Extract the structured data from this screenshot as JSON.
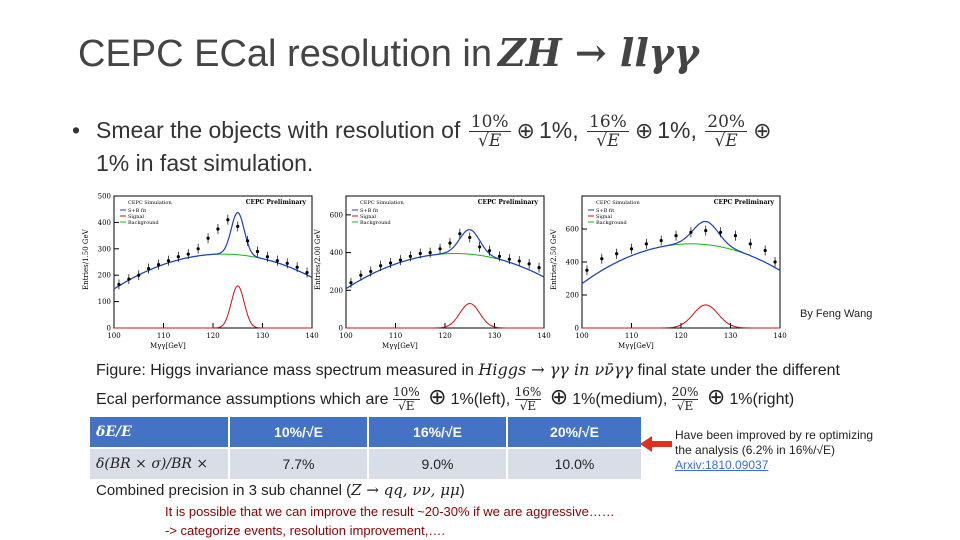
{
  "slide": {
    "title_text": "CEPC ECal resolution in",
    "title_math": "ZH → llγγ",
    "bullet_symbol": "•",
    "bullet_text": "Smear the objects with resolution of",
    "resolutions": [
      {
        "numerator": "10%",
        "denominator": "√E"
      },
      {
        "numerator": "16%",
        "denominator": "√E"
      },
      {
        "numerator": "20%",
        "denominator": "√E"
      }
    ],
    "oplus": "⊕",
    "constant_term": "1%,",
    "bullet_line2": "1% in fast simulation.",
    "credit": "By Feng Wang",
    "caption_line1_a": "Figure: Higgs invariance mass spectrum measured in",
    "caption_line1_math": "Higgs → γγ in νν̄γγ",
    "caption_line1_b": "final state under the different",
    "caption_line2_a": "Ecal performance assumptions which are",
    "caption_terms": [
      "1%(left),",
      "1%(medium),",
      "1%(right)"
    ],
    "combined_text": "Combined precision in 3 sub channel (",
    "combined_math": "Z → qq, νν, μμ",
    "combined_close": ")",
    "aggressive_line1": "It is possible that we can improve the result ~20-30% if we are aggressive……",
    "aggressive_line2": "-> categorize events, resolution improvement,…."
  },
  "table": {
    "header": [
      "δE/E",
      "10%/√E",
      "16%/√E",
      "20%/√E"
    ],
    "row_label": "δ(BR × σ)/BR ×",
    "row_values": [
      "7.7%",
      "9.0%",
      "10.0%"
    ]
  },
  "note": {
    "line1": "Have been improved by re optimizing",
    "line2": "the analysis (6.2% in 16%/√E)",
    "link": "Arxiv:1810.09037"
  },
  "chart_data": [
    {
      "type": "line",
      "title": "CEPC Preliminary",
      "tag": "CEPC Simulation",
      "legend": [
        "S+B fit",
        "Signal",
        "Background"
      ],
      "xlabel": "Mγγ[GeV]",
      "ylabel": "Entries/1.50 GeV",
      "xlim": [
        100,
        140
      ],
      "ylim": [
        0,
        500
      ],
      "xticks": [
        100,
        110,
        120,
        130,
        140
      ],
      "yticks": [
        0,
        100,
        200,
        300,
        400,
        500
      ],
      "x": [
        101,
        103,
        105,
        107,
        109,
        111,
        113,
        115,
        117,
        119,
        121,
        123,
        125,
        127,
        129,
        131,
        133,
        135,
        137,
        139
      ],
      "data": [
        165,
        185,
        200,
        225,
        240,
        255,
        270,
        280,
        300,
        340,
        375,
        410,
        385,
        330,
        290,
        270,
        255,
        245,
        230,
        210
      ],
      "signal_peak": 160,
      "signal_sigma": 1.3,
      "bkg_top": 280
    },
    {
      "type": "line",
      "title": "CEPC Preliminary",
      "tag": "CEPC Simulation",
      "legend": [
        "S+B fit",
        "Signal",
        "Background"
      ],
      "xlabel": "Mγγ[GeV]",
      "ylabel": "Entries/2.00 GeV",
      "xlim": [
        100,
        140
      ],
      "ylim": [
        0,
        700
      ],
      "xticks": [
        100,
        110,
        120,
        130,
        140
      ],
      "yticks": [
        0,
        200,
        400,
        600
      ],
      "x": [
        101,
        103,
        105,
        107,
        109,
        111,
        113,
        115,
        117,
        119,
        121,
        123,
        125,
        127,
        129,
        131,
        133,
        135,
        137,
        139
      ],
      "data": [
        240,
        280,
        300,
        330,
        345,
        360,
        380,
        395,
        400,
        420,
        450,
        500,
        480,
        430,
        410,
        380,
        365,
        355,
        340,
        320
      ],
      "signal_peak": 130,
      "signal_sigma": 2.0,
      "bkg_top": 395
    },
    {
      "type": "line",
      "title": "CEPC Preliminary",
      "tag": "CEPC Simulation",
      "legend": [
        "S+B fit",
        "Signal",
        "Background"
      ],
      "xlabel": "Mγγ[GeV]",
      "ylabel": "Entries/2.50 GeV",
      "xlim": [
        100,
        140
      ],
      "ylim": [
        0,
        800
      ],
      "xticks": [
        100,
        110,
        120,
        130,
        140
      ],
      "yticks": [
        0,
        200,
        400,
        600
      ],
      "x": [
        101,
        104,
        107,
        110,
        113,
        116,
        119,
        122,
        125,
        128,
        131,
        134,
        137,
        139
      ],
      "data": [
        350,
        420,
        450,
        480,
        510,
        530,
        560,
        580,
        590,
        580,
        560,
        510,
        470,
        400
      ],
      "signal_peak": 140,
      "signal_sigma": 2.5,
      "bkg_top": 510
    }
  ],
  "colors": {
    "fit": "#1f3fbf",
    "signal": "#d01010",
    "background": "#19b319",
    "table_header": "#4472c4",
    "arrow": "#e03020"
  }
}
